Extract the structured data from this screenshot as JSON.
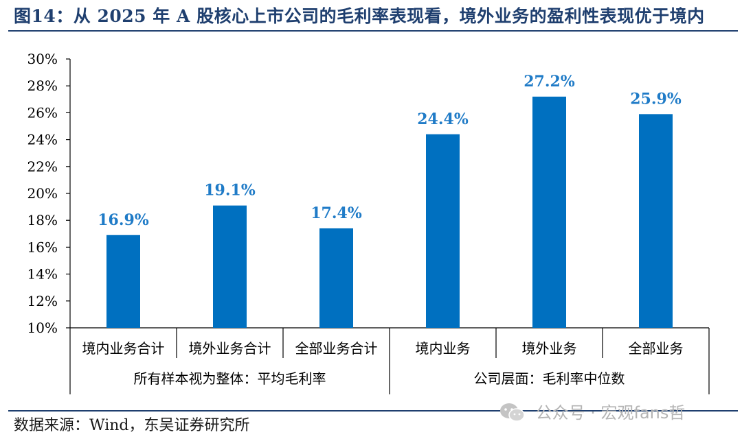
{
  "title": "图14：从 2025 年 A 股核心上市公司的毛利率表现看，境外业务的盈利性表现优于境内",
  "source": "数据来源：Wind，东吴证券研究所",
  "watermark": {
    "text": "公众号 · 宏观fans哲",
    "icon": "wechat-icon"
  },
  "colors": {
    "bar": "#0070c0",
    "label": "#1f7bc7",
    "title": "#1f3f6f",
    "axis": "#000000"
  },
  "chart_data": {
    "type": "bar",
    "y_ticks": [
      "30%",
      "28%",
      "26%",
      "24%",
      "22%",
      "20%",
      "18%",
      "16%",
      "14%",
      "12%",
      "10%"
    ],
    "ylim": [
      10,
      30
    ],
    "categories": [
      "境内业务合计",
      "境外业务合计",
      "全部业务合计",
      "境内业务",
      "境外业务",
      "全部业务"
    ],
    "values": [
      16.9,
      19.1,
      17.4,
      24.4,
      27.2,
      25.9
    ],
    "data_labels": [
      "16.9%",
      "19.1%",
      "17.4%",
      "24.4%",
      "27.2%",
      "25.9%"
    ],
    "groups": [
      {
        "label": "所有样本视为整体：平均毛利率",
        "span": 3
      },
      {
        "label": "公司层面：毛利率中位数",
        "span": 3
      }
    ],
    "grid": false,
    "legend": "none"
  }
}
